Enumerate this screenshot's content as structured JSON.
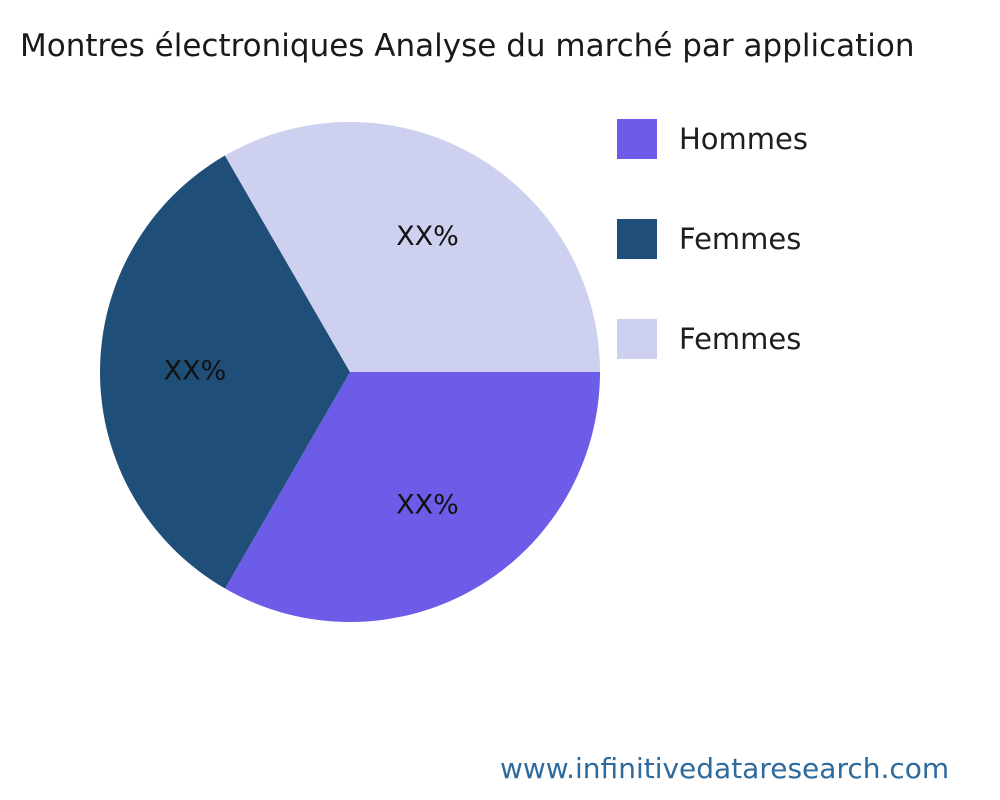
{
  "page": {
    "title": "Montres électroniques Analyse du marché par application",
    "footer": "www.infinitivedataresearch.com",
    "footer_color": "#2d6a9d",
    "background_color": "#ffffff"
  },
  "chart_data": {
    "type": "pie",
    "title": "Montres électroniques Analyse du marché par application",
    "labels": [
      "Hommes",
      "Femmes",
      "Femmes"
    ],
    "values": [
      33.33,
      33.33,
      33.34
    ],
    "value_labels": [
      "XX%",
      "XX%",
      "XX%"
    ],
    "colors": [
      "#6c5ce8",
      "#1f4e78",
      "#cdd0ef"
    ],
    "start_angle_deg": 0,
    "direction": "clockwise",
    "legend_position": "right",
    "grid": false
  }
}
